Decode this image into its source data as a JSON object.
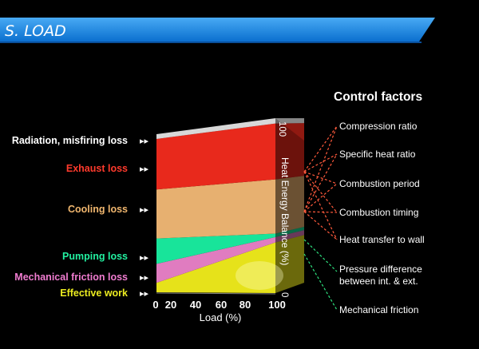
{
  "header": {
    "title": "S. LOAD"
  },
  "colors": {
    "banner": "#1e90e8",
    "radiation": "#d8d8d8",
    "exhaust": "#e8291c",
    "cooling": "#e7b070",
    "pumping": "#18e49a",
    "mechanical_friction": "#e07cc0",
    "effective_work": "#e6e21a",
    "connector_red": "#ff5a3c",
    "connector_green": "#2ee07e"
  },
  "chart_data": {
    "type": "area",
    "title": "",
    "xlabel": "Load (%)",
    "ylabel": "Heat Energy Balance (%)",
    "x_ticks": [
      "0",
      "20",
      "40",
      "60",
      "80",
      "100"
    ],
    "y_ticks": [
      "100",
      "0"
    ],
    "xlim": [
      0,
      100
    ],
    "ylim": [
      0,
      100
    ],
    "x": [
      0,
      100
    ],
    "series": [
      {
        "name": "Radiation, misfiring loss",
        "values": [
          3,
          3
        ]
      },
      {
        "name": "Exhaust loss",
        "values": [
          32,
          32
        ]
      },
      {
        "name": "Cooling loss",
        "values": [
          31,
          31
        ]
      },
      {
        "name": "Pumping loss",
        "values": [
          16,
          2
        ]
      },
      {
        "name": "Mechanical friction loss",
        "values": [
          12,
          3
        ]
      },
      {
        "name": "Effective work",
        "values": [
          6,
          29
        ]
      }
    ],
    "legend_placement": "left",
    "control_factors": {
      "title": "Control factors",
      "items": [
        "Compression ratio",
        "Specific heat ratio",
        "Combustion period",
        "Combustion timing",
        "Heat transfer to wall",
        "Pressure difference",
        "between int. & ext.",
        "Mechanical friction"
      ]
    }
  },
  "arrow_glyph": "▸▸"
}
